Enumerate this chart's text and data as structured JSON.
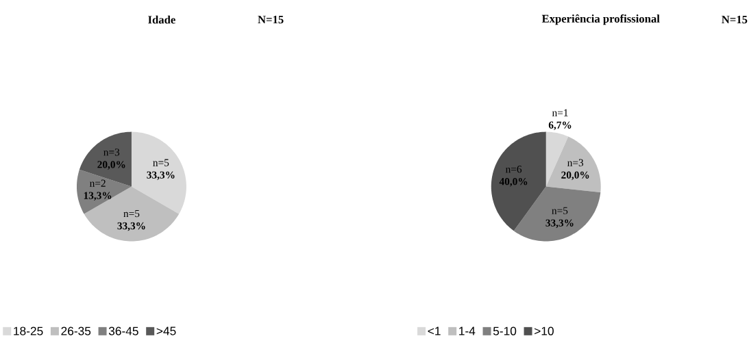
{
  "chart_data": [
    {
      "type": "pie",
      "title": "Idade",
      "subtitle": "N=15",
      "categories": [
        "18-25",
        "26-35",
        "36-45",
        ">45"
      ],
      "values": [
        5,
        5,
        2,
        3
      ],
      "colors": [
        "#d9d9d9",
        "#bfbfbf",
        "#808080",
        "#595959"
      ],
      "value_labels": [
        "n=5 **33,3%**",
        "n=5 **33,3%**",
        "n=2 **13,3%**",
        "n=3 **20,0%**"
      ],
      "legend": "bottom left"
    },
    {
      "type": "pie",
      "title": "Experiência profissional",
      "subtitle": "N=15",
      "categories": [
        "<1",
        "1-4",
        "5-10",
        ">10"
      ],
      "values": [
        1,
        3,
        5,
        6
      ],
      "colors": [
        "#d9d9d9",
        "#bfbfbf",
        "#808080",
        "#505050"
      ],
      "value_labels": [
        "n=1 **6,7%**",
        "n=3 **20,0%**",
        "n=5 **33,3%**",
        "n=6 **40,0%**"
      ],
      "legend": "bottom left"
    }
  ]
}
